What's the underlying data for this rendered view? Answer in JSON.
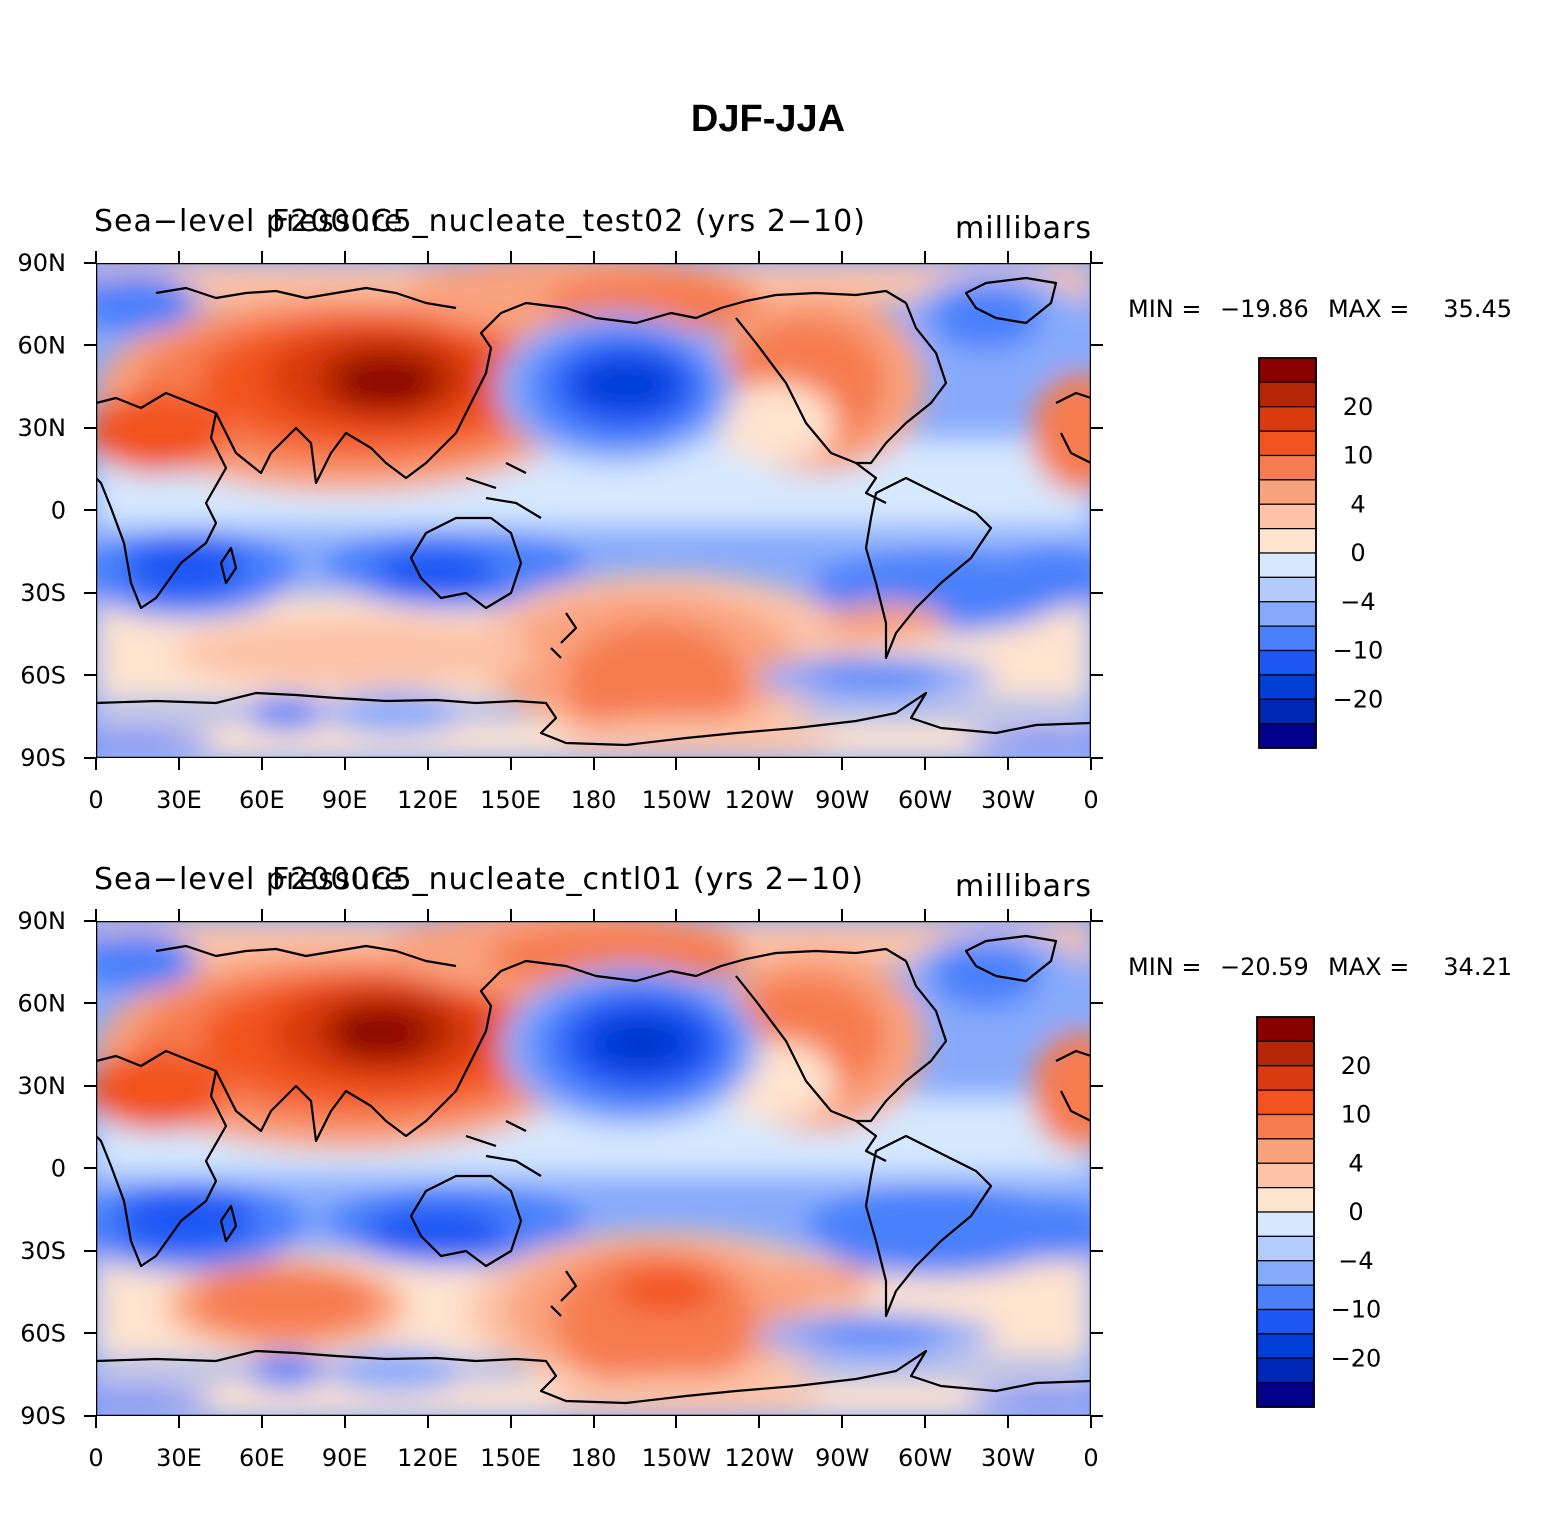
{
  "figure": {
    "title": "DJF-JJA"
  },
  "palette": {
    "levels": [
      "-40",
      "-20",
      "-15",
      "-10",
      "-6",
      "-4",
      "-2",
      "0",
      "2",
      "4",
      "6",
      "10",
      "15",
      "20",
      "40"
    ],
    "colors": [
      "#00008a",
      "#0026b5",
      "#003ed8",
      "#1e56f4",
      "#4a80fb",
      "#86aafb",
      "#b4cbfd",
      "#d6e8fe",
      "#fee3cf",
      "#fcc3a8",
      "#f9a27e",
      "#f67b50",
      "#f2531e",
      "#da3a10",
      "#b42606",
      "#8a0000"
    ]
  },
  "axes": {
    "lon_ticks": [
      "0",
      "30E",
      "60E",
      "90E",
      "120E",
      "150E",
      "180",
      "150W",
      "120W",
      "90W",
      "60W",
      "30W",
      "0"
    ],
    "lat_ticks": [
      "90N",
      "60N",
      "30N",
      "0",
      "30S",
      "60S",
      "90S"
    ]
  },
  "panels": [
    {
      "left_title": "Sea−level pressure",
      "center_title": "F2000C5_nucleate_test02 (yrs 2−10)",
      "units": "millibars",
      "stats": {
        "min_label": "MIN =",
        "min": "−19.86",
        "max_label": "MAX =",
        "max": "35.45"
      },
      "colorbar_labels": [
        "20",
        "10",
        "4",
        "0",
        "−4",
        "−10",
        "−20"
      ]
    },
    {
      "left_title": "Sea−level pressure",
      "center_title": "F2000C5_nucleate_cntl01 (yrs 2−10)",
      "units": "millibars",
      "stats": {
        "min_label": "MIN =",
        "min": "−20.59",
        "max_label": "MAX =",
        "max": "34.21"
      },
      "colorbar_labels": [
        "20",
        "10",
        "4",
        "0",
        "−4",
        "−10",
        "−20"
      ]
    }
  ]
}
